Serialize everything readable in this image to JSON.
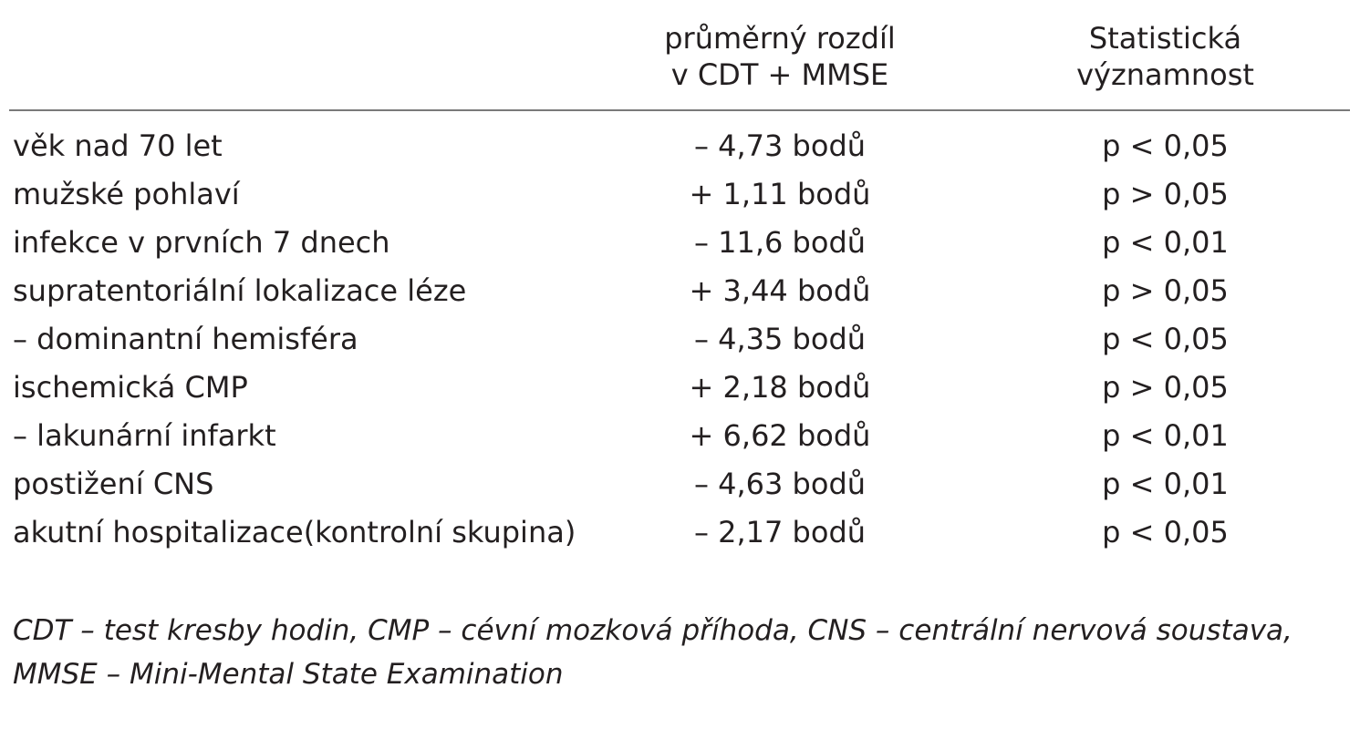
{
  "header": {
    "col2": [
      "průměrný rozdíl",
      "v CDT + MMSE"
    ],
    "col3": [
      "Statistická",
      "významnost"
    ]
  },
  "rows": [
    {
      "factor": "věk nad 70 let",
      "difference": "– 4,73 bodů",
      "significance": "p < 0,05"
    },
    {
      "factor": "mužské pohlaví",
      "difference": "+ 1,11 bodů",
      "significance": "p > 0,05"
    },
    {
      "factor": "infekce v prvních 7 dnech",
      "difference": "– 11,6 bodů",
      "significance": "p < 0,01"
    },
    {
      "factor": "supratentoriální lokalizace léze",
      "difference": "+ 3,44 bodů",
      "significance": "p > 0,05"
    },
    {
      "factor": "– dominantní hemisféra",
      "difference": "– 4,35 bodů",
      "significance": "p < 0,05"
    },
    {
      "factor": "ischemická CMP",
      "difference": "+ 2,18 bodů",
      "significance": "p > 0,05"
    },
    {
      "factor": "– lakunární infarkt",
      "difference": "+ 6,62 bodů",
      "significance": "p < 0,01"
    },
    {
      "factor": "postižení CNS",
      "difference": "– 4,63 bodů",
      "significance": "p < 0,01"
    },
    {
      "factor": "akutní hospitalizace(kontrolní skupina)",
      "difference": "– 2,17 bodů",
      "significance": "p < 0,05"
    }
  ],
  "footnote": [
    "CDT – test kresby hodin, CMP – cévní mozková příhoda, CNS – centrální nervová soustava,",
    "MMSE – Mini-Mental State Examination"
  ]
}
